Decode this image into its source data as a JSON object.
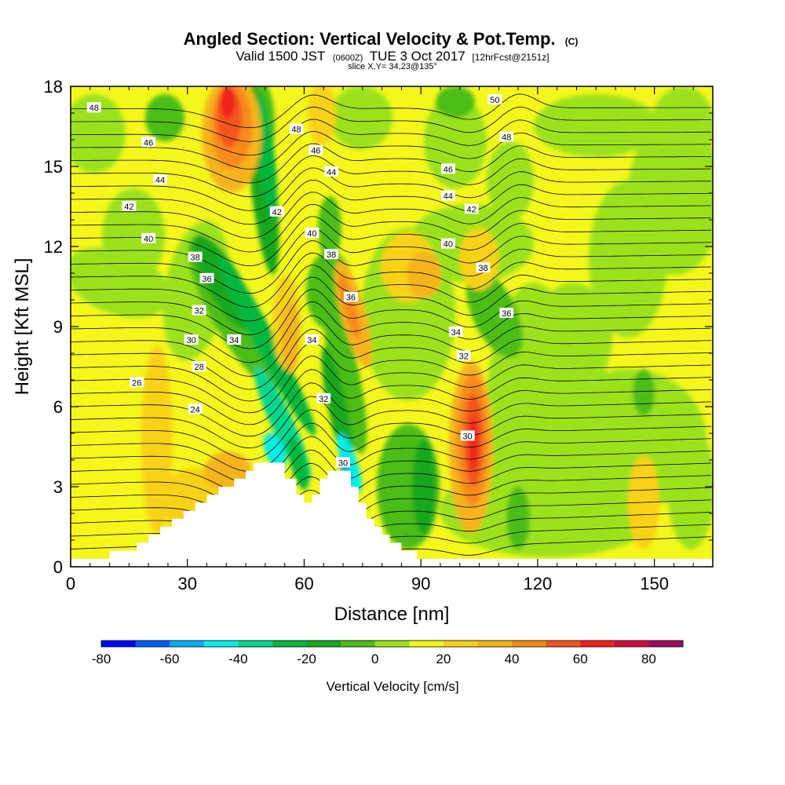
{
  "chart_data": {
    "type": "heatmap",
    "title": {
      "main": "Angled Section: Vertical Velocity & Pot.Temp.",
      "main_units": "(C)",
      "valid_prefix": "Valid 1500 JST",
      "valid_zone": "(0600Z)",
      "valid_date": "TUE 3 Oct 2017",
      "valid_fcst": "[12hrFcst@2151z]",
      "slice": "slice X,Y= 34,23@135°"
    },
    "xlabel": "Distance [nm]",
    "ylabel": "Height [Kft MSL]",
    "xlim": [
      0,
      165
    ],
    "ylim": [
      0,
      18
    ],
    "xticks": [
      0,
      30,
      60,
      90,
      120,
      150
    ],
    "yticks": [
      0,
      3,
      6,
      9,
      12,
      15,
      18
    ],
    "terrain_height_kft": [
      {
        "x": 0,
        "h": 0.3
      },
      {
        "x": 10,
        "h": 0.6
      },
      {
        "x": 17,
        "h": 0.9
      },
      {
        "x": 20,
        "h": 1.2
      },
      {
        "x": 23,
        "h": 1.5
      },
      {
        "x": 26,
        "h": 1.8
      },
      {
        "x": 29,
        "h": 2.1
      },
      {
        "x": 32,
        "h": 2.4
      },
      {
        "x": 35,
        "h": 2.7
      },
      {
        "x": 38,
        "h": 3.0
      },
      {
        "x": 42,
        "h": 3.3
      },
      {
        "x": 45,
        "h": 3.6
      },
      {
        "x": 47,
        "h": 3.9
      },
      {
        "x": 52,
        "h": 3.9
      },
      {
        "x": 55,
        "h": 3.3
      },
      {
        "x": 58,
        "h": 2.7
      },
      {
        "x": 60,
        "h": 2.4
      },
      {
        "x": 62,
        "h": 2.7
      },
      {
        "x": 64,
        "h": 3.3
      },
      {
        "x": 66,
        "h": 3.6
      },
      {
        "x": 71,
        "h": 3.6
      },
      {
        "x": 72,
        "h": 3.0
      },
      {
        "x": 74,
        "h": 2.4
      },
      {
        "x": 76,
        "h": 1.8
      },
      {
        "x": 78,
        "h": 1.5
      },
      {
        "x": 80,
        "h": 1.2
      },
      {
        "x": 82,
        "h": 0.9
      },
      {
        "x": 85,
        "h": 0.6
      },
      {
        "x": 89,
        "h": 0.3
      },
      {
        "x": 165,
        "h": 0.3
      }
    ],
    "vertical_velocity_features_cm_s": [
      {
        "type": "updraft",
        "x": 41,
        "y": 17.0,
        "peak": 60
      },
      {
        "type": "updraft",
        "x": 104,
        "y": 5.0,
        "peak": 60
      },
      {
        "type": "updraft",
        "x": 72,
        "y": 9.5,
        "peak": 30
      },
      {
        "type": "updraft",
        "x": 90,
        "y": 11.0,
        "peak": 25
      },
      {
        "type": "updraft",
        "x": 56,
        "y": 8.5,
        "peak": 30
      },
      {
        "type": "downdraft",
        "x": 48,
        "y": 12.0,
        "peak": -40
      },
      {
        "type": "downdraft",
        "x": 51,
        "y": 4.5,
        "peak": -50
      },
      {
        "type": "downdraft",
        "x": 71,
        "y": 4.0,
        "peak": -70
      },
      {
        "type": "downdraft",
        "x": 66,
        "y": 7.5,
        "peak": -20
      },
      {
        "type": "downdraft",
        "x": 110,
        "y": 8.0,
        "peak": -20
      }
    ],
    "theta_contour_labels": [
      {
        "value": "48",
        "x": 6,
        "y": 17.2
      },
      {
        "value": "46",
        "x": 20,
        "y": 15.9
      },
      {
        "value": "44",
        "x": 23,
        "y": 14.5
      },
      {
        "value": "42",
        "x": 15,
        "y": 13.5
      },
      {
        "value": "40",
        "x": 20,
        "y": 12.3
      },
      {
        "value": "38",
        "x": 32,
        "y": 11.6
      },
      {
        "value": "36",
        "x": 35,
        "y": 10.8
      },
      {
        "value": "32",
        "x": 33,
        "y": 9.6
      },
      {
        "value": "30",
        "x": 31,
        "y": 8.5
      },
      {
        "value": "28",
        "x": 33,
        "y": 7.5
      },
      {
        "value": "26",
        "x": 17,
        "y": 6.9
      },
      {
        "value": "24",
        "x": 32,
        "y": 5.9
      },
      {
        "value": "34",
        "x": 42,
        "y": 8.5
      },
      {
        "value": "48",
        "x": 58,
        "y": 16.4
      },
      {
        "value": "46",
        "x": 63,
        "y": 15.6
      },
      {
        "value": "44",
        "x": 67,
        "y": 14.8
      },
      {
        "value": "42",
        "x": 53,
        "y": 13.3
      },
      {
        "value": "40",
        "x": 62,
        "y": 12.5
      },
      {
        "value": "38",
        "x": 67,
        "y": 11.7
      },
      {
        "value": "36",
        "x": 72,
        "y": 10.1
      },
      {
        "value": "34",
        "x": 62,
        "y": 8.5
      },
      {
        "value": "32",
        "x": 65,
        "y": 6.3
      },
      {
        "value": "30",
        "x": 70,
        "y": 3.9
      },
      {
        "value": "50",
        "x": 109,
        "y": 17.5
      },
      {
        "value": "48",
        "x": 112,
        "y": 16.1
      },
      {
        "value": "46",
        "x": 97,
        "y": 14.9
      },
      {
        "value": "44",
        "x": 97,
        "y": 13.9
      },
      {
        "value": "42",
        "x": 103,
        "y": 13.4
      },
      {
        "value": "40",
        "x": 97,
        "y": 12.1
      },
      {
        "value": "38",
        "x": 106,
        "y": 11.2
      },
      {
        "value": "36",
        "x": 112,
        "y": 9.5
      },
      {
        "value": "34",
        "x": 99,
        "y": 8.8
      },
      {
        "value": "32",
        "x": 101,
        "y": 7.9
      },
      {
        "value": "30",
        "x": 102,
        "y": 4.9
      }
    ],
    "colorbar": {
      "title": "Vertical Velocity [cm/s]",
      "tick_labels": [
        "-80",
        "-60",
        "-40",
        "-20",
        "0",
        "20",
        "40",
        "60",
        "80"
      ],
      "levels": [
        -80,
        -70,
        -60,
        -50,
        -40,
        -30,
        -20,
        -10,
        0,
        10,
        20,
        30,
        40,
        50,
        60,
        70,
        80,
        90
      ],
      "colors": [
        "#0000ff",
        "#005ef8",
        "#00aef8",
        "#00eee8",
        "#00d890",
        "#00b840",
        "#16a81e",
        "#4cbd16",
        "#9be21a",
        "#f4f71b",
        "#f8d216",
        "#f6b41a",
        "#f88a1a",
        "#f3541f",
        "#f0201d",
        "#cf0c3e",
        "#a00c60",
        "#5e0e87"
      ]
    }
  }
}
